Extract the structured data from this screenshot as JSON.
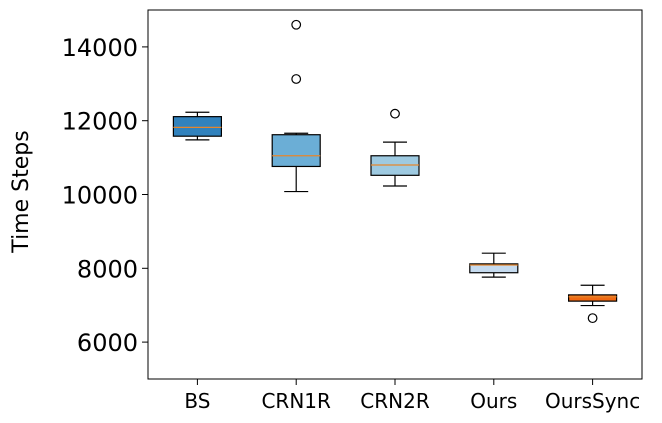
{
  "chart_data": {
    "type": "box",
    "title": "",
    "xlabel": "",
    "ylabel": "Time Steps",
    "ylim": [
      5000,
      15000
    ],
    "yticks": [
      6000,
      8000,
      10000,
      12000,
      14000
    ],
    "grid": false,
    "categories": [
      "BS",
      "CRN1R",
      "CRN2R",
      "Ours",
      "OursSync"
    ],
    "boxes": [
      {
        "name": "BS",
        "whisker_low": 11480,
        "q1": 11580,
        "median": 11820,
        "q3": 12110,
        "whisker_high": 12230,
        "outliers": [],
        "color": "#3182bd"
      },
      {
        "name": "CRN1R",
        "whisker_low": 10080,
        "q1": 10760,
        "median": 11050,
        "q3": 11620,
        "whisker_high": 11660,
        "outliers": [
          13130,
          14600
        ],
        "color": "#6baed6"
      },
      {
        "name": "CRN2R",
        "whisker_low": 10230,
        "q1": 10520,
        "median": 10800,
        "q3": 11050,
        "whisker_high": 11420,
        "outliers": [
          12190
        ],
        "color": "#9ecae1"
      },
      {
        "name": "Ours",
        "whisker_low": 7760,
        "q1": 7880,
        "median": 8090,
        "q3": 8120,
        "whisker_high": 8410,
        "outliers": [],
        "color": "#c6dbef"
      },
      {
        "name": "OursSync",
        "whisker_low": 6990,
        "q1": 7110,
        "median": 7230,
        "q3": 7280,
        "whisker_high": 7540,
        "outliers": [
          6650
        ],
        "color": "#f16913"
      }
    ],
    "median_color": "#e6862c"
  }
}
